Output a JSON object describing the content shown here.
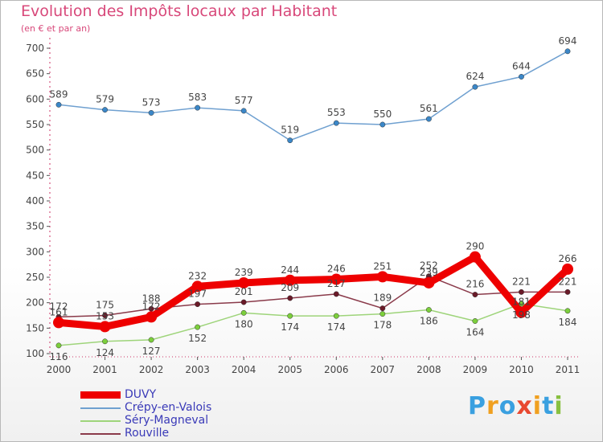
{
  "header": {
    "title": "Evolution des Impôts locaux par Habitant",
    "subtitle": "(en € et par an)"
  },
  "chart_data": {
    "type": "line",
    "title": "Evolution des Impôts locaux par Habitant",
    "subtitle": "(en € et par an)",
    "xlabel": "",
    "ylabel": "",
    "x": [
      "2000",
      "2001",
      "2002",
      "2003",
      "2004",
      "2005",
      "2006",
      "2007",
      "2008",
      "2009",
      "2010",
      "2011"
    ],
    "ylim": [
      100,
      700
    ],
    "yticks": [
      100,
      150,
      200,
      250,
      300,
      350,
      400,
      450,
      500,
      550,
      600,
      650,
      700
    ],
    "grid": false,
    "legend_position": "bottom-left",
    "series": [
      {
        "name": "Crépy-en-Valois",
        "color": "#6fa0d0",
        "marker": "#3b87c8",
        "values": [
          589,
          579,
          573,
          583,
          577,
          519,
          553,
          550,
          561,
          624,
          644,
          694
        ]
      },
      {
        "name": "Séry-Magneval",
        "color": "#9ed47a",
        "marker": "#7ccf3c",
        "values": [
          116,
          124,
          127,
          152,
          180,
          174,
          174,
          178,
          186,
          164,
          198,
          184
        ]
      },
      {
        "name": "Rouville",
        "color": "#8a3a4a",
        "marker": "#6a1a28",
        "values": [
          172,
          175,
          188,
          197,
          201,
          209,
          217,
          189,
          252,
          216,
          221,
          221
        ]
      },
      {
        "name": "DUVY",
        "color": "#ee0000",
        "marker": "#ee0000",
        "values": [
          161,
          153,
          172,
          232,
          239,
          244,
          246,
          251,
          239,
          290,
          181,
          266
        ]
      }
    ],
    "data_labels": [
      [
        "589",
        "579",
        "573",
        "583",
        "577",
        "519",
        "553",
        "550",
        "561",
        "624",
        "644",
        "694"
      ],
      [
        "116",
        "124",
        "127",
        "152",
        "180",
        "174",
        "174",
        "178",
        "186",
        "164",
        "198",
        "184"
      ],
      [
        "172",
        "175",
        "188",
        "197",
        "201",
        "209",
        "217",
        "189",
        "252",
        "216",
        "221",
        "221"
      ],
      [
        "161",
        "153",
        "172",
        "232",
        "239",
        "244",
        "246",
        "251",
        "239",
        "290",
        "181",
        "266"
      ]
    ]
  },
  "legend": {
    "items": [
      {
        "label": "DUVY",
        "color": "#ee0000"
      },
      {
        "label": "Crépy-en-Valois",
        "color": "#6fa0d0"
      },
      {
        "label": "Séry-Magneval",
        "color": "#9ed47a"
      },
      {
        "label": "Rouville",
        "color": "#8a3a4a"
      }
    ]
  },
  "logo": {
    "text": "Proxiti",
    "letters": [
      "P",
      "r",
      "o",
      "x",
      "i",
      "t",
      "i"
    ],
    "colors": [
      "#3aa0e0",
      "#f0a020",
      "#3aa0e0",
      "#e84830",
      "#f0a020",
      "#3aa0e0",
      "#88c040"
    ]
  }
}
